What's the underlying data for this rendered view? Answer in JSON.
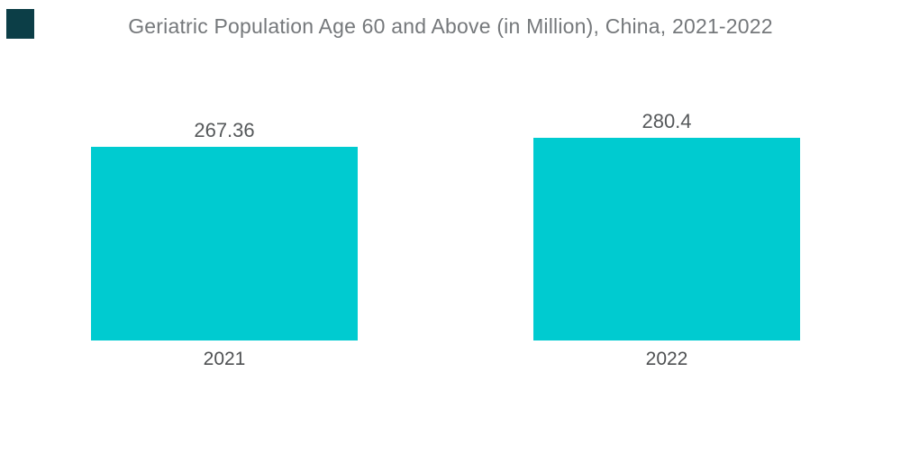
{
  "page": {
    "background": "#ffffff"
  },
  "brand": {
    "logo_color": "#0C3E47"
  },
  "chart_data": {
    "type": "bar",
    "title": "Geriatric Population Age 60 and Above (in Million), China, 2021-2022",
    "categories": [
      "2021",
      "2022"
    ],
    "values": [
      267.36,
      280.4
    ],
    "value_labels": [
      "267.36",
      "280.4"
    ],
    "bar_color": "#00CBD0",
    "title_color": "#75787B",
    "label_color": "#55585A",
    "xlabel": "",
    "ylabel": "",
    "ylim": [
      0,
      280.4
    ],
    "grid": false,
    "legend": false,
    "axes_visible": false
  }
}
